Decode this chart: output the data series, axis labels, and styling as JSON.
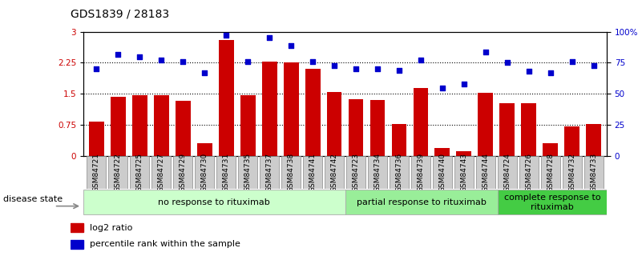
{
  "title": "GDS1839 / 28183",
  "samples": [
    "GSM84721",
    "GSM84722",
    "GSM84725",
    "GSM84727",
    "GSM84729",
    "GSM84730",
    "GSM84731",
    "GSM84735",
    "GSM84737",
    "GSM84738",
    "GSM84741",
    "GSM84742",
    "GSM84723",
    "GSM84734",
    "GSM84736",
    "GSM84739",
    "GSM84740",
    "GSM84743",
    "GSM84744",
    "GSM84724",
    "GSM84726",
    "GSM84728",
    "GSM84732",
    "GSM84733"
  ],
  "log2_ratio": [
    0.82,
    1.43,
    1.47,
    1.46,
    1.33,
    0.3,
    2.8,
    1.47,
    2.28,
    2.26,
    2.1,
    1.55,
    1.38,
    1.36,
    0.77,
    1.65,
    0.2,
    0.12,
    1.52,
    1.28,
    1.28,
    0.3,
    0.72,
    0.78
  ],
  "percentile": [
    70,
    82,
    80,
    77,
    76,
    67,
    97,
    76,
    95,
    89,
    76,
    73,
    70,
    70,
    69,
    77,
    55,
    58,
    84,
    75,
    68,
    67,
    76,
    73
  ],
  "bar_color": "#cc0000",
  "dot_color": "#0000cc",
  "ylim_left": [
    0,
    3
  ],
  "ylim_right": [
    0,
    100
  ],
  "yticks_left": [
    0,
    0.75,
    1.5,
    2.25,
    3
  ],
  "ytick_labels_left": [
    "0",
    "0.75",
    "1.5",
    "2.25",
    "3"
  ],
  "yticks_right": [
    0,
    25,
    50,
    75,
    100
  ],
  "ytick_labels_right": [
    "0",
    "25",
    "50",
    "75",
    "100%"
  ],
  "groups": [
    {
      "label": "no response to rituximab",
      "start": 0,
      "end": 12,
      "color": "#ccffcc",
      "edgecolor": "#aaaaaa"
    },
    {
      "label": "partial response to rituximab",
      "start": 12,
      "end": 19,
      "color": "#99ee99",
      "edgecolor": "#aaaaaa"
    },
    {
      "label": "complete response to\nrituximab",
      "start": 19,
      "end": 24,
      "color": "#44cc44",
      "edgecolor": "#aaaaaa"
    }
  ],
  "legend_items": [
    {
      "color": "#cc0000",
      "label": "log2 ratio"
    },
    {
      "color": "#0000cc",
      "label": "percentile rank within the sample"
    }
  ],
  "disease_state_label": "disease state",
  "background_color": "#ffffff",
  "title_fontsize": 10,
  "tick_fontsize": 7.5,
  "group_fontsize": 8,
  "legend_fontsize": 8
}
